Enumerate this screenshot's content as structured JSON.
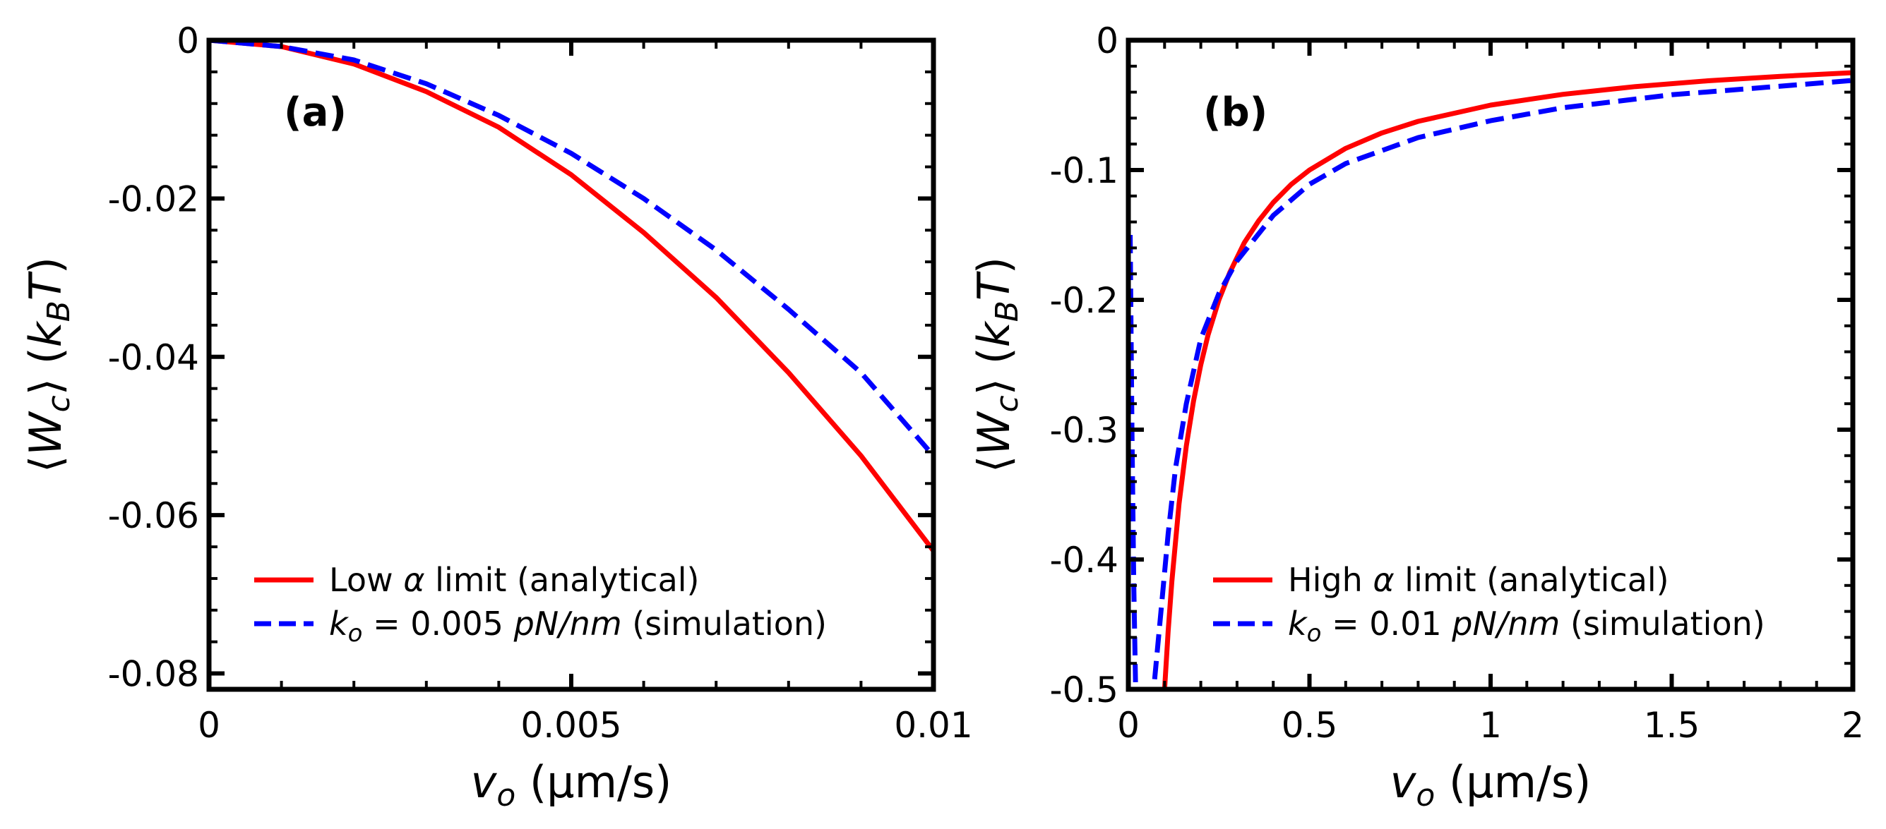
{
  "chart_data": [
    {
      "type": "line",
      "panel_label": "(a)",
      "xlabel_var": "v",
      "xlabel_sub": "o",
      "xlabel_unit": "(μm/s)",
      "ylabel_lhs": "⟨",
      "ylabel_var": "W",
      "ylabel_sub": "c",
      "ylabel_rhs": "⟩",
      "ylabel_unit_var": "k",
      "ylabel_unit_sub": "B",
      "ylabel_unit_T": "T",
      "xlim": [
        0,
        0.01
      ],
      "ylim": [
        -0.082,
        0.0
      ],
      "xticks": [
        0,
        0.005,
        0.01
      ],
      "xtick_labels": [
        "0",
        "0.005",
        "0.01"
      ],
      "yticks": [
        0,
        -0.02,
        -0.04,
        -0.06,
        -0.08
      ],
      "ytick_labels": [
        "0",
        "-0.02",
        "-0.04",
        "-0.06",
        "-0.08"
      ],
      "legend_position": "lower-left",
      "series": [
        {
          "name": "Low α limit (analytical)",
          "legend_pre": "Low ",
          "legend_sym": "α",
          "legend_post": " limit (analytical)",
          "color": "#ff0000",
          "dash": "solid",
          "x": [
            0,
            0.001,
            0.002,
            0.003,
            0.004,
            0.005,
            0.006,
            0.007,
            0.008,
            0.009,
            0.01
          ],
          "y": [
            0,
            -0.0008,
            -0.003,
            -0.0065,
            -0.011,
            -0.017,
            -0.0243,
            -0.0325,
            -0.042,
            -0.0525,
            -0.0645
          ]
        },
        {
          "name": "k_o = 0.005 pN/nm (simulation)",
          "legend_k": "k",
          "legend_k_sub": "o",
          "legend_eq": " = 0.005 ",
          "legend_unit": "pN/nm",
          "legend_post": " (simulation)",
          "color": "#0000ff",
          "dash": "dashed",
          "x": [
            0,
            0.001,
            0.002,
            0.003,
            0.004,
            0.005,
            0.006,
            0.007,
            0.008,
            0.009,
            0.01
          ],
          "y": [
            0,
            -0.0008,
            -0.0025,
            -0.0055,
            -0.0095,
            -0.0143,
            -0.02,
            -0.0265,
            -0.034,
            -0.042,
            -0.0525
          ]
        }
      ]
    },
    {
      "type": "line",
      "panel_label": "(b)",
      "xlabel_var": "v",
      "xlabel_sub": "o",
      "xlabel_unit": "(μm/s)",
      "ylabel_lhs": "⟨",
      "ylabel_var": "W",
      "ylabel_sub": "c",
      "ylabel_rhs": "⟩",
      "ylabel_unit_var": "k",
      "ylabel_unit_sub": "B",
      "ylabel_unit_T": "T",
      "xlim": [
        0,
        2
      ],
      "ylim": [
        -0.5,
        0.0
      ],
      "xticks": [
        0,
        0.5,
        1,
        1.5,
        2
      ],
      "xtick_labels": [
        "0",
        "0.5",
        "1",
        "1.5",
        "2"
      ],
      "yticks": [
        0,
        -0.1,
        -0.2,
        -0.3,
        -0.4,
        -0.5
      ],
      "ytick_labels": [
        "0",
        "-0.1",
        "-0.2",
        "-0.3",
        "-0.4",
        "-0.5"
      ],
      "legend_position": "lower-right",
      "series": [
        {
          "name": "High α limit (analytical)",
          "legend_pre": "High ",
          "legend_sym": "α",
          "legend_post": " limit (analytical)",
          "color": "#ff0000",
          "dash": "solid",
          "x": [
            0.1,
            0.11,
            0.12,
            0.14,
            0.16,
            0.18,
            0.2,
            0.22,
            0.25,
            0.28,
            0.32,
            0.36,
            0.4,
            0.45,
            0.5,
            0.6,
            0.7,
            0.8,
            1.0,
            1.2,
            1.4,
            1.6,
            1.8,
            2.0
          ],
          "y": [
            -0.5,
            -0.455,
            -0.417,
            -0.357,
            -0.3125,
            -0.278,
            -0.25,
            -0.227,
            -0.2,
            -0.179,
            -0.156,
            -0.139,
            -0.125,
            -0.111,
            -0.1,
            -0.0833,
            -0.0714,
            -0.0625,
            -0.05,
            -0.0417,
            -0.0357,
            -0.03125,
            -0.0278,
            -0.025
          ]
        },
        {
          "name": "k_o = 0.01 pN/nm (simulation)",
          "legend_k": "k",
          "legend_k_sub": "o",
          "legend_eq": " = 0.01 ",
          "legend_unit": "pN/nm",
          "legend_post": " (simulation)",
          "color": "#0000ff",
          "dash": "dashed",
          "x": [
            0.005,
            0.01,
            0.015,
            0.02,
            0.03,
            0.05,
            0.07,
            0.09,
            0.11,
            0.13,
            0.16,
            0.2,
            0.25,
            0.3,
            0.4,
            0.5,
            0.6,
            0.8,
            1.0,
            1.2,
            1.5,
            2.0
          ],
          "y": [
            -0.15,
            -0.3,
            -0.42,
            -0.5,
            -0.5,
            -0.5,
            -0.5,
            -0.44,
            -0.38,
            -0.33,
            -0.28,
            -0.23,
            -0.195,
            -0.17,
            -0.135,
            -0.111,
            -0.095,
            -0.075,
            -0.062,
            -0.052,
            -0.042,
            -0.031
          ]
        }
      ]
    }
  ]
}
